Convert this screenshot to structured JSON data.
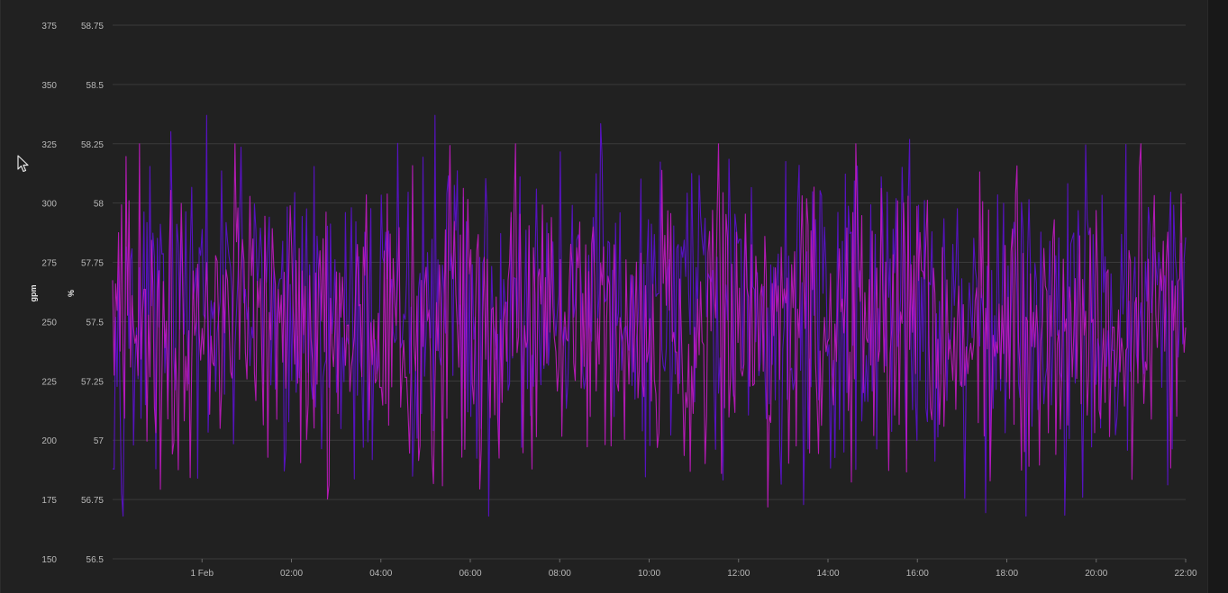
{
  "chart_data": {
    "type": "line",
    "title": "",
    "ylabel_left": "gpm",
    "ylabel_right": "%",
    "xlabel": "",
    "yleft_ticks": [
      "375",
      "350",
      "325",
      "300",
      "275",
      "250",
      "225",
      "200",
      "175",
      "150"
    ],
    "yright_ticks": [
      "58.75",
      "58.5",
      "58.25",
      "58",
      "57.75",
      "57.5",
      "57.25",
      "57",
      "56.75",
      "56.5"
    ],
    "yleft_range": [
      150,
      375
    ],
    "yright_range": [
      56.5,
      58.75
    ],
    "x_ticks": [
      "1 Feb",
      "02:00",
      "04:00",
      "06:00",
      "08:00",
      "10:00",
      "12:00",
      "14:00",
      "16:00",
      "18:00",
      "20:00",
      "22:00"
    ],
    "x_range_hours": [
      -2.0,
      22.0
    ],
    "x_tick_hours": [
      0,
      2,
      4,
      6,
      8,
      10,
      12,
      14,
      16,
      18,
      20,
      22
    ],
    "grid": "horizontal",
    "legend": "none",
    "series": [
      {
        "axis": "left",
        "color": "#5a12c8",
        "samples": 720,
        "mean": 253,
        "min": 168,
        "max": 337
      },
      {
        "axis": "right",
        "color": "#c21ac2",
        "samples": 720,
        "mean": 57.5,
        "min": 56.63,
        "max": 58.25
      }
    ]
  },
  "colors": {
    "background": "#212121",
    "grid": "#3b3b3b",
    "tick_text": "#b8b8b8"
  },
  "icons": {
    "cursor": "mouse-pointer-icon"
  }
}
